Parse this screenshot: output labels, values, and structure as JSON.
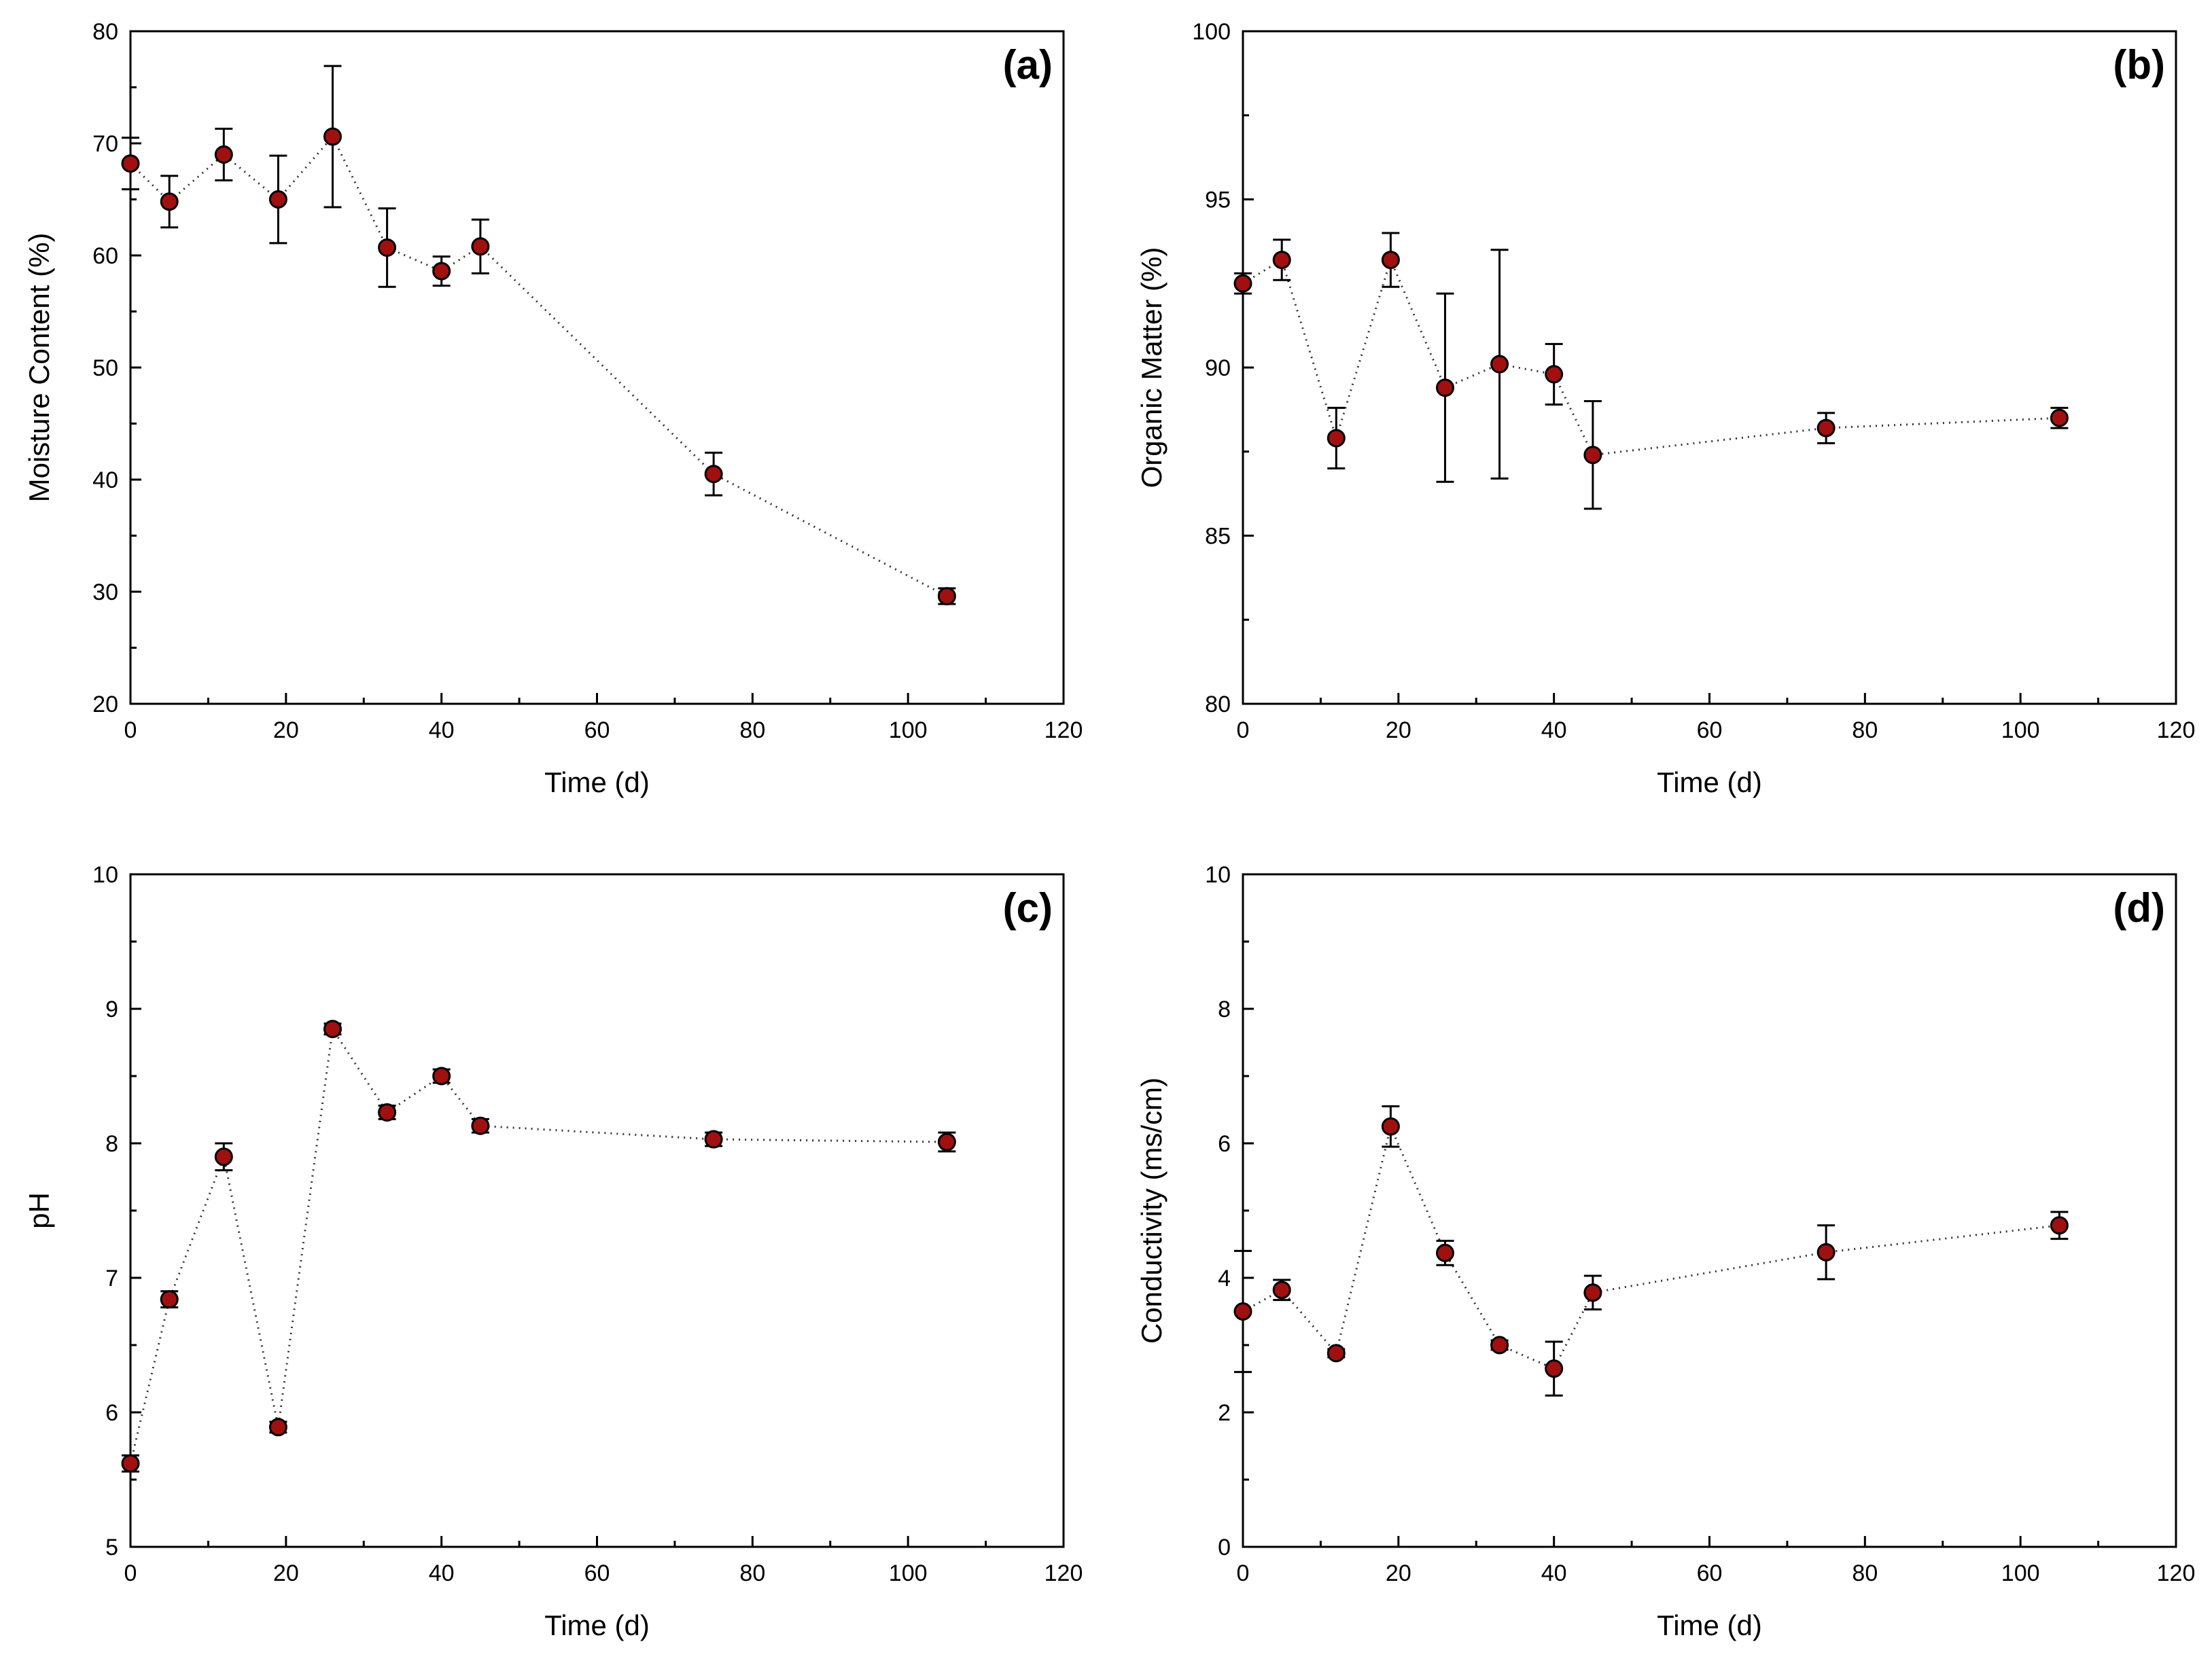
{
  "colors": {
    "marker": "#a01010",
    "axis": "#000000",
    "line": "#333333"
  },
  "chart_data": [
    {
      "type": "scatter",
      "panel_label": "(a)",
      "xlabel": "Time (d)",
      "ylabel": "Moisture Content (%)",
      "xlim": [
        0,
        120
      ],
      "ylim": [
        20,
        80
      ],
      "xticks": [
        0,
        20,
        40,
        60,
        80,
        100,
        120
      ],
      "yticks": [
        20,
        30,
        40,
        50,
        60,
        70,
        80
      ],
      "connected": "dotted",
      "x": [
        0,
        5,
        12,
        19,
        26,
        33,
        40,
        45,
        75,
        105
      ],
      "y": [
        68.2,
        64.8,
        69.0,
        65.0,
        70.6,
        60.7,
        58.6,
        60.8,
        40.5,
        29.6
      ],
      "error": [
        2.3,
        2.3,
        2.3,
        3.9,
        6.3,
        3.5,
        1.3,
        2.4,
        1.9,
        0.7
      ]
    },
    {
      "type": "scatter",
      "panel_label": "(b)",
      "xlabel": "Time (d)",
      "ylabel": "Organic Matter (%)",
      "xlim": [
        0,
        120
      ],
      "ylim": [
        80,
        100
      ],
      "xticks": [
        0,
        20,
        40,
        60,
        80,
        100,
        120
      ],
      "yticks": [
        80,
        85,
        90,
        95,
        100
      ],
      "connected": "dotted",
      "x": [
        0,
        5,
        12,
        19,
        26,
        33,
        40,
        45,
        75,
        105
      ],
      "y": [
        92.5,
        93.2,
        87.9,
        93.2,
        89.4,
        90.1,
        89.8,
        87.4,
        88.2,
        88.5
      ],
      "error": [
        0.3,
        0.6,
        0.9,
        0.8,
        2.8,
        3.4,
        0.9,
        1.6,
        0.45,
        0.3
      ]
    },
    {
      "type": "scatter",
      "panel_label": "(c)",
      "xlabel": "Time (d)",
      "ylabel": "pH",
      "xlim": [
        0,
        120
      ],
      "ylim": [
        5,
        10
      ],
      "xticks": [
        0,
        20,
        40,
        60,
        80,
        100,
        120
      ],
      "yticks": [
        5,
        6,
        7,
        8,
        9,
        10
      ],
      "connected": "dotted",
      "x": [
        0,
        5,
        12,
        19,
        26,
        33,
        40,
        45,
        75,
        105
      ],
      "y": [
        5.62,
        6.84,
        7.9,
        5.89,
        8.85,
        8.23,
        8.5,
        8.13,
        8.03,
        8.01
      ],
      "error": [
        0.06,
        0.06,
        0.1,
        0.04,
        0.04,
        0.05,
        0.05,
        0.05,
        0.05,
        0.07
      ]
    },
    {
      "type": "scatter",
      "panel_label": "(d)",
      "xlabel": "Time (d)",
      "ylabel": "Conductivity (ms/cm)",
      "xlim": [
        0,
        120
      ],
      "ylim": [
        0,
        10
      ],
      "xticks": [
        0,
        20,
        40,
        60,
        80,
        100,
        120
      ],
      "yticks": [
        0,
        2,
        4,
        6,
        8,
        10
      ],
      "connected": "dotted",
      "x": [
        0,
        5,
        12,
        19,
        26,
        33,
        40,
        45,
        75,
        105
      ],
      "y": [
        3.5,
        3.82,
        2.88,
        6.25,
        4.37,
        3.0,
        2.65,
        3.78,
        4.38,
        4.78
      ],
      "error": [
        0.9,
        0.15,
        0.06,
        0.3,
        0.18,
        0.07,
        0.4,
        0.25,
        0.4,
        0.2
      ]
    }
  ]
}
